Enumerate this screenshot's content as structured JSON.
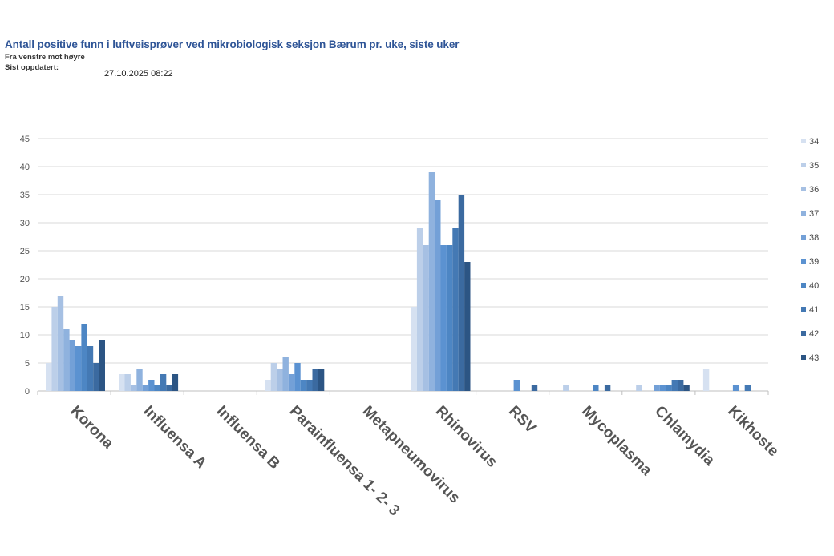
{
  "header": {
    "title": "Antall positive funn i luftveisprøver ved mikrobiologisk seksjon Bærum pr. uke, siste uker",
    "subtitle": "Fra venstre mot høyre",
    "updated_label": "Sist oppdatert:",
    "updated_value": "27.10.2025 08:22"
  },
  "chart_data": {
    "type": "bar",
    "title": "",
    "xlabel": "",
    "ylabel": "",
    "ylim": [
      0,
      45
    ],
    "yticks": [
      0,
      5,
      10,
      15,
      20,
      25,
      30,
      35,
      40,
      45
    ],
    "grid": true,
    "legend_position": "right",
    "categories": [
      "Korona",
      "Influensa A",
      "Influensa B",
      "Parainfluensa 1- 2- 3",
      "Metapneumovirus",
      "Rhinovirus",
      "RSV",
      "Mycoplasma",
      "Chlamydia",
      "Kikhoste"
    ],
    "series": [
      {
        "name": "34",
        "color": "#d6e1f1",
        "values": [
          5,
          3,
          0,
          2,
          0,
          15,
          0,
          0,
          0,
          4
        ]
      },
      {
        "name": "35",
        "color": "#bccfe9",
        "values": [
          15,
          3,
          0,
          5,
          0,
          29,
          0,
          1,
          1,
          0
        ]
      },
      {
        "name": "36",
        "color": "#a6c0e3",
        "values": [
          17,
          1,
          0,
          4,
          0,
          26,
          0,
          0,
          0,
          0
        ]
      },
      {
        "name": "37",
        "color": "#8fb2de",
        "values": [
          11,
          4,
          0,
          6,
          0,
          39,
          0,
          0,
          0,
          0
        ]
      },
      {
        "name": "38",
        "color": "#73a0d7",
        "values": [
          9,
          1,
          0,
          3,
          0,
          34,
          0,
          0,
          1,
          0
        ]
      },
      {
        "name": "39",
        "color": "#5b92d1",
        "values": [
          8,
          2,
          0,
          5,
          0,
          26,
          2,
          0,
          1,
          1
        ]
      },
      {
        "name": "40",
        "color": "#4d86c4",
        "values": [
          12,
          1,
          0,
          2,
          0,
          26,
          0,
          1,
          1,
          0
        ]
      },
      {
        "name": "41",
        "color": "#4479b4",
        "values": [
          8,
          3,
          0,
          2,
          0,
          29,
          0,
          0,
          2,
          1
        ]
      },
      {
        "name": "42",
        "color": "#3b6aa0",
        "values": [
          5,
          1,
          0,
          4,
          0,
          35,
          1,
          1,
          2,
          0
        ]
      },
      {
        "name": "43",
        "color": "#2c5584",
        "values": [
          9,
          3,
          0,
          4,
          0,
          23,
          0,
          0,
          1,
          0
        ]
      }
    ]
  }
}
